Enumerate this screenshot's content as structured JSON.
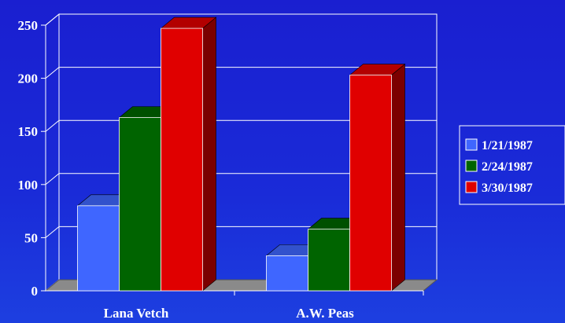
{
  "chart_data": {
    "type": "bar",
    "title": "",
    "xlabel": "",
    "ylabel": "",
    "categories": [
      "Lana Vetch",
      "A.W. Peas"
    ],
    "series": [
      {
        "name": "1/21/1987",
        "values": [
          80,
          33
        ],
        "color": "#3f66ff"
      },
      {
        "name": "2/24/1987",
        "values": [
          163,
          58
        ],
        "color": "#006400"
      },
      {
        "name": "3/30/1987",
        "values": [
          247,
          203
        ],
        "color": "#e00000"
      }
    ],
    "ylim": [
      0,
      250
    ],
    "yticks": [
      0,
      50,
      100,
      150,
      200,
      250
    ],
    "grid": true,
    "legend": "right",
    "style_3d": true
  }
}
